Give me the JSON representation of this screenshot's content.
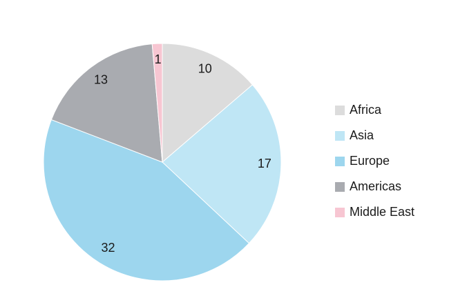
{
  "chart_data": {
    "type": "pie",
    "categories": [
      "Africa",
      "Asia",
      "Europe",
      "Americas",
      "Middle East"
    ],
    "values": [
      10,
      17,
      32,
      13,
      1
    ],
    "colors": [
      "#dcdcdc",
      "#bfe6f5",
      "#9dd6ee",
      "#a9abb0",
      "#f7c6d2"
    ],
    "legend": "right"
  }
}
